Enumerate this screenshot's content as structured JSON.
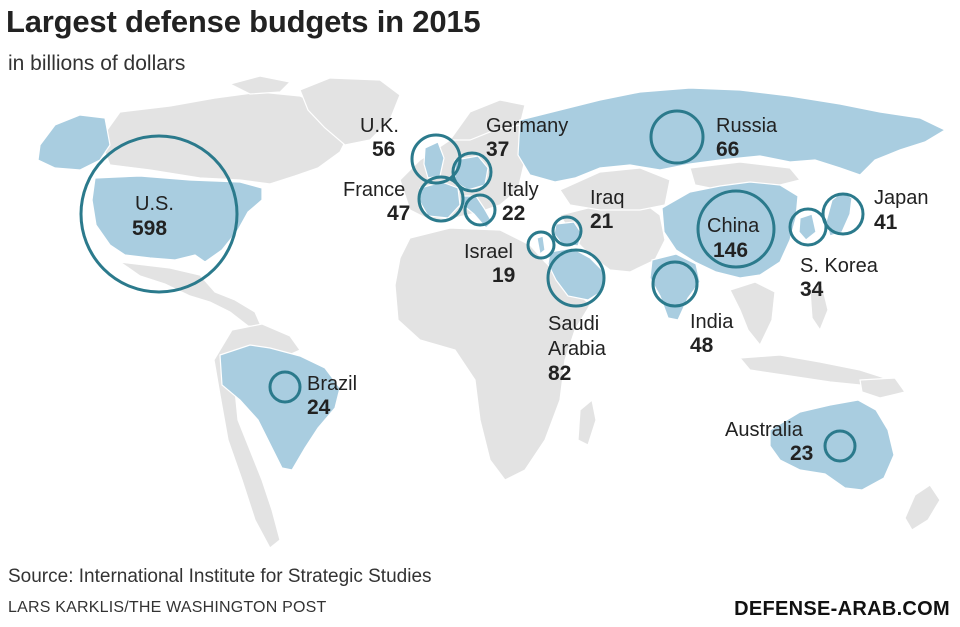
{
  "title": "Largest defense budgets in 2015",
  "subtitle": "in billions of dollars",
  "source": "Source: International Institute for Strategic Studies",
  "credit": "LARS KARKLIS/THE WASHINGTON POST",
  "watermark": "DEFENSE-ARAB.COM",
  "colors": {
    "land": "#e3e3e3",
    "highlight": "#a9cde0",
    "circle": "#2b7a8c",
    "border": "#ffffff"
  },
  "countries": [
    {
      "id": "us",
      "name": "U.S.",
      "value": "598"
    },
    {
      "id": "uk",
      "name": "U.K.",
      "value": "56"
    },
    {
      "id": "germany",
      "name": "Germany",
      "value": "37"
    },
    {
      "id": "russia",
      "name": "Russia",
      "value": "66"
    },
    {
      "id": "france",
      "name": "France",
      "value": "47"
    },
    {
      "id": "italy",
      "name": "Italy",
      "value": "22"
    },
    {
      "id": "iraq",
      "name": "Iraq",
      "value": "21"
    },
    {
      "id": "israel",
      "name": "Israel",
      "value": "19"
    },
    {
      "id": "saudi",
      "name": "Saudi Arabia",
      "name_line1": "Saudi",
      "name_line2": "Arabia",
      "value": "82"
    },
    {
      "id": "china",
      "name": "China",
      "value": "146"
    },
    {
      "id": "japan",
      "name": "Japan",
      "value": "41"
    },
    {
      "id": "skorea",
      "name": "S. Korea",
      "value": "34"
    },
    {
      "id": "india",
      "name": "India",
      "value": "48"
    },
    {
      "id": "brazil",
      "name": "Brazil",
      "value": "24"
    },
    {
      "id": "australia",
      "name": "Australia",
      "value": "23"
    }
  ]
}
